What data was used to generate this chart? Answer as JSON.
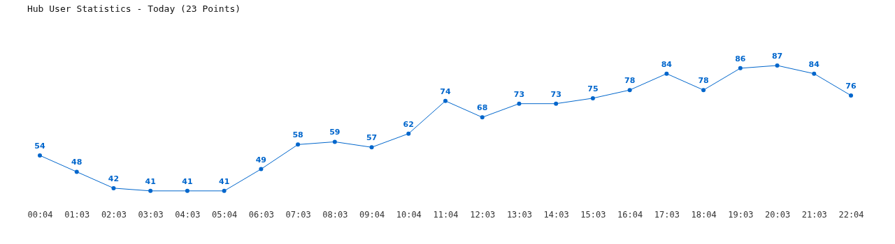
{
  "chart_data": {
    "type": "line",
    "title": "Hub User Statistics - Today (23 Points)",
    "categories": [
      "00:04",
      "01:03",
      "02:03",
      "03:03",
      "04:03",
      "05:04",
      "06:03",
      "07:03",
      "08:03",
      "09:04",
      "10:04",
      "11:04",
      "12:03",
      "13:03",
      "14:03",
      "15:03",
      "16:04",
      "17:03",
      "18:04",
      "19:03",
      "20:03",
      "21:03",
      "22:04"
    ],
    "series": [
      {
        "color": "#0066cc",
        "values": [
          54,
          48,
          42,
          41,
          41,
          41,
          49,
          58,
          59,
          57,
          62,
          74,
          68,
          73,
          73,
          75,
          78,
          84,
          78,
          86,
          87,
          84,
          76
        ]
      }
    ],
    "data_labels": true,
    "marker": "circle",
    "grid": false,
    "legend": false
  }
}
